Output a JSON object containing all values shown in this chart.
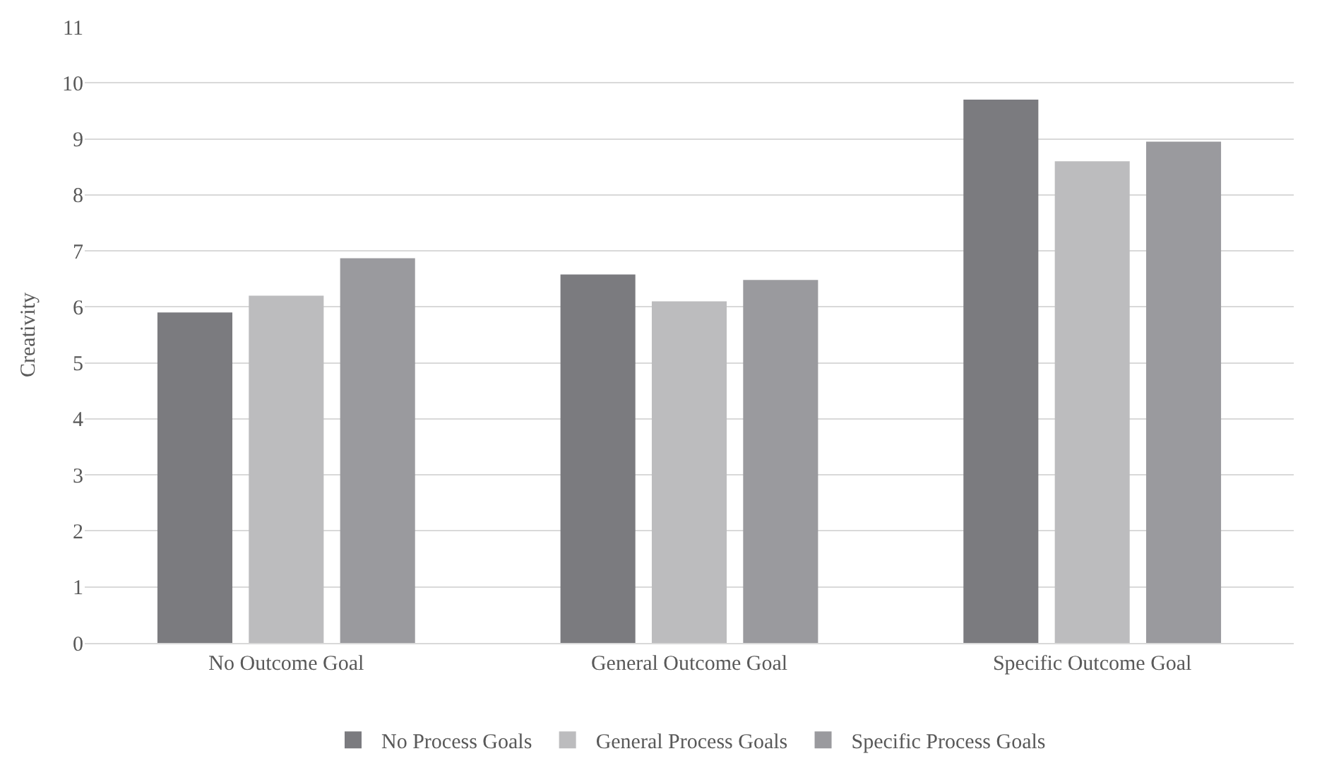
{
  "chart_data": {
    "type": "bar",
    "ylabel": "Creativity",
    "categories": [
      "No Outcome Goal",
      "General Outcome Goal",
      "Specific Outcome Goal"
    ],
    "series": [
      {
        "name": "No Process Goals",
        "color": "#7b7b7f",
        "values": [
          5.9,
          6.58,
          9.7
        ]
      },
      {
        "name": "General Process Goals",
        "color": "#bcbcbe",
        "values": [
          6.2,
          6.1,
          8.6
        ]
      },
      {
        "name": "Specific Process Goals",
        "color": "#9a9a9e",
        "values": [
          6.87,
          6.48,
          8.95
        ]
      }
    ],
    "ylim": [
      0,
      11
    ],
    "yticks": [
      0,
      1,
      2,
      3,
      4,
      5,
      6,
      7,
      8,
      9,
      10,
      11
    ],
    "grid": "y",
    "legend": "bottom"
  }
}
